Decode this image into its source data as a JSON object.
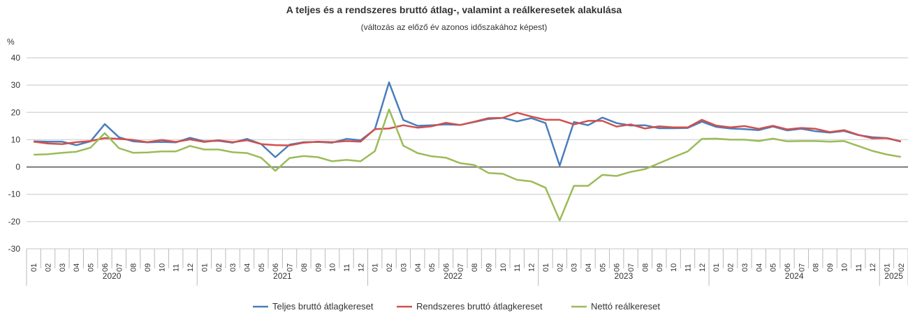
{
  "chart_data": {
    "type": "line",
    "title": "A teljes és a rendszeres bruttó átlag-, valamint a reálkeresetek alakulása",
    "subtitle": "(változás az előző év azonos időszakához képest)",
    "ylabel": "%",
    "ylim": [
      -30,
      40
    ],
    "yticks": [
      40,
      30,
      20,
      10,
      0,
      -10,
      -20,
      -30
    ],
    "years": [
      {
        "label": "2020",
        "months": 12
      },
      {
        "label": "2021",
        "months": 12
      },
      {
        "label": "2022",
        "months": 12
      },
      {
        "label": "2023",
        "months": 12
      },
      {
        "label": "2024",
        "months": 12
      },
      {
        "label": "2025",
        "months": 2
      }
    ],
    "month_labels": [
      "01",
      "02",
      "03",
      "04",
      "05",
      "06",
      "07",
      "08",
      "09",
      "10",
      "11",
      "12"
    ],
    "grid": true,
    "legend_position": "bottom",
    "series": [
      {
        "name": "Teljes bruttó átlagkereset",
        "color": "#4a7ebb",
        "values": [
          9.4,
          9.3,
          9.3,
          8.0,
          9.4,
          15.7,
          10.9,
          9.4,
          9.0,
          9.2,
          9.0,
          10.7,
          9.4,
          9.6,
          8.9,
          10.3,
          8.4,
          3.6,
          8.2,
          9.1,
          9.2,
          8.9,
          10.3,
          9.8,
          13.8,
          31.0,
          17.2,
          15.1,
          15.3,
          15.6,
          15.4,
          16.5,
          17.6,
          18.0,
          16.7,
          17.9,
          16.1,
          0.5,
          16.5,
          15.3,
          18.1,
          16.1,
          15.2,
          15.3,
          14.2,
          14.2,
          14.3,
          16.6,
          14.7,
          14.1,
          13.9,
          13.5,
          14.8,
          13.4,
          14.0,
          13.1,
          12.6,
          13.2,
          11.7,
          10.9,
          10.6,
          9.3
        ]
      },
      {
        "name": "Rendszeres bruttó átlagkereset",
        "color": "#d0504d",
        "values": [
          9.3,
          8.6,
          8.4,
          9.1,
          9.5,
          10.6,
          10.3,
          9.9,
          9.1,
          9.9,
          9.2,
          10.1,
          9.2,
          9.8,
          9.1,
          9.8,
          8.4,
          8.0,
          7.9,
          8.9,
          9.3,
          9.1,
          9.5,
          9.3,
          13.9,
          14.1,
          15.3,
          14.4,
          14.9,
          16.2,
          15.4,
          16.6,
          17.9,
          18.0,
          19.9,
          18.5,
          17.3,
          17.3,
          15.6,
          16.9,
          16.9,
          14.8,
          15.6,
          14.1,
          14.9,
          14.5,
          14.5,
          17.3,
          15.2,
          14.5,
          15.0,
          14.0,
          15.1,
          13.8,
          14.3,
          14.0,
          12.8,
          13.5,
          11.8,
          10.5,
          10.6,
          9.4
        ]
      },
      {
        "name": "Nettó reálkereset",
        "color": "#9bbb59",
        "values": [
          4.5,
          4.7,
          5.2,
          5.6,
          7.1,
          12.4,
          6.9,
          5.2,
          5.3,
          5.7,
          5.7,
          7.7,
          6.4,
          6.4,
          5.4,
          5.1,
          3.4,
          -1.4,
          3.3,
          4.0,
          3.6,
          2.1,
          2.6,
          2.1,
          5.8,
          21.1,
          7.8,
          5.1,
          3.9,
          3.4,
          1.4,
          0.7,
          -2.2,
          -2.5,
          -4.7,
          -5.3,
          -7.6,
          -19.6,
          -6.9,
          -6.9,
          -2.9,
          -3.3,
          -1.8,
          -0.8,
          1.4,
          3.6,
          5.7,
          10.3,
          10.4,
          10.0,
          10.0,
          9.5,
          10.4,
          9.4,
          9.5,
          9.5,
          9.3,
          9.5,
          7.7,
          5.9,
          4.6,
          3.7
        ]
      }
    ]
  }
}
